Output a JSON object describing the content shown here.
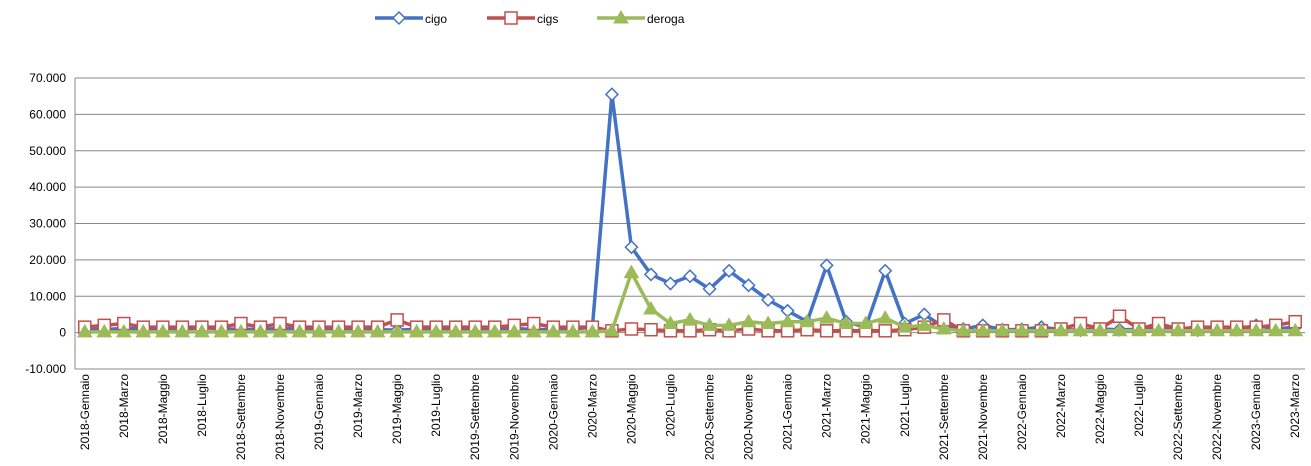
{
  "chart_data": {
    "type": "line",
    "categories": [
      "2018-Gennaio",
      null,
      "2018-Marzo",
      null,
      "2018-Maggio",
      null,
      "2018-Luglio",
      null,
      "2018-Settembre",
      null,
      "2018-Novembre",
      null,
      "2019-Gennaio",
      null,
      "2019-Marzo",
      null,
      "2019-Maggio",
      null,
      "2019-Luglio",
      null,
      "2019-Settembre",
      null,
      "2019-Novembre",
      null,
      "2020-Gennaio",
      null,
      "2020-Marzo",
      null,
      "2020-Maggio",
      null,
      "2020-Luglio",
      null,
      "2020-Settembre",
      null,
      "2020-Novembre",
      null,
      "2021-Gennaio",
      null,
      "2021-Marzo",
      null,
      "2021-Maggio",
      null,
      "2021-Luglio",
      null,
      "2021-Settembre",
      null,
      "2021-Novembre",
      null,
      "2022-Gennaio",
      null,
      "2022-Marzo",
      null,
      "2022-Maggio",
      null,
      "2022-Luglio",
      null,
      "2022-Settembre",
      null,
      "2022-Novembre",
      null,
      "2023-Gennaio",
      null,
      "2023-Marzo"
    ],
    "series": [
      {
        "name": "cigo",
        "color": "#4472c4",
        "marker": "diamond",
        "values": [
          1000,
          800,
          1200,
          900,
          1000,
          800,
          1500,
          900,
          1000,
          800,
          1200,
          900,
          800,
          700,
          900,
          800,
          700,
          900,
          800,
          700,
          900,
          1000,
          1200,
          800,
          900,
          1000,
          1500,
          65500,
          23500,
          16000,
          13500,
          15500,
          12000,
          17000,
          13000,
          9000,
          6000,
          3000,
          18500,
          3000,
          1500,
          17000,
          2500,
          5000,
          1500,
          1000,
          2000,
          800,
          900,
          1500,
          800,
          700,
          1000,
          800,
          900,
          1200,
          800,
          700,
          1500,
          800,
          2000,
          1000,
          1500
        ]
      },
      {
        "name": "cigs",
        "color": "#c0504d",
        "marker": "square",
        "values": [
          1500,
          2000,
          2500,
          1500,
          1500,
          1500,
          1500,
          1500,
          2500,
          1500,
          2500,
          1500,
          1500,
          1500,
          1500,
          1500,
          3500,
          1500,
          1500,
          1500,
          1500,
          1500,
          2000,
          2500,
          1500,
          1500,
          1500,
          500,
          1000,
          800,
          500,
          500,
          800,
          500,
          1000,
          500,
          500,
          800,
          500,
          500,
          500,
          500,
          800,
          1500,
          3500,
          500,
          500,
          500,
          500,
          500,
          1000,
          2500,
          1000,
          4500,
          1000,
          2500,
          1000,
          1500,
          1500,
          1500,
          1500,
          2000,
          3000
        ]
      },
      {
        "name": "deroga",
        "color": "#9bbb59",
        "marker": "triangle",
        "values": [
          200,
          200,
          200,
          200,
          200,
          200,
          200,
          200,
          200,
          200,
          200,
          200,
          200,
          200,
          200,
          200,
          200,
          200,
          200,
          200,
          200,
          200,
          200,
          200,
          200,
          200,
          200,
          500,
          16500,
          6500,
          2500,
          3500,
          2000,
          2000,
          3000,
          2500,
          3000,
          3000,
          4000,
          2500,
          2500,
          4000,
          1500,
          2000,
          1000,
          500,
          500,
          500,
          500,
          500,
          500,
          500,
          500,
          500,
          500,
          500,
          500,
          500,
          500,
          500,
          500,
          500,
          500
        ]
      }
    ],
    "ylim": [
      -10000,
      70000
    ],
    "yticks": [
      {
        "value": -10000,
        "label": "-10.000"
      },
      0,
      {
        "value": 10000,
        "label": "10.000"
      },
      {
        "value": 20000,
        "label": "20.000"
      },
      {
        "value": 30000,
        "label": "30.000"
      },
      {
        "value": 40000,
        "label": "40.000"
      },
      {
        "value": 50000,
        "label": "50.000"
      },
      {
        "value": 60000,
        "label": "60.000"
      },
      {
        "value": 70000,
        "label": "70.000"
      }
    ],
    "grid": true,
    "legend": "top"
  }
}
